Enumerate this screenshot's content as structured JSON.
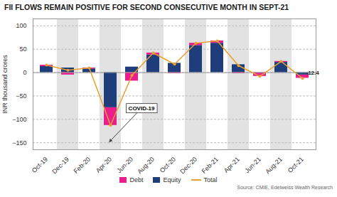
{
  "chart_data": {
    "type": "bar",
    "title": "FII FLOWS REMAIN POSITIVE FOR SECOND CONSECUTIVE MONTH IN SEPT-21",
    "ylabel": "INR thousand crores",
    "source": "Source: CMIE, Edelweiss Wealth Research",
    "categories": [
      "Oct-19",
      "Dec-19",
      "Feb-20",
      "Apr-20",
      "Jun-20",
      "Aug-20",
      "Oct-20",
      "Dec-20",
      "Feb-21",
      "Apr-21",
      "Jun-21",
      "Aug-21",
      "Oct-21"
    ],
    "series": [
      {
        "name": "Debt",
        "color": "#e91e8c",
        "values": [
          3,
          -5,
          2,
          -38,
          -18,
          4,
          -2,
          5,
          5,
          -2,
          -8,
          2,
          -7
        ]
      },
      {
        "name": "Equity",
        "color": "#1f3d7a",
        "values": [
          13,
          10,
          8,
          -75,
          12,
          38,
          20,
          58,
          63,
          17,
          0,
          22,
          -5
        ]
      },
      {
        "name": "Total",
        "type": "line",
        "color": "#e8a030",
        "marker": "circle",
        "values": [
          16,
          5,
          10,
          -113,
          -6,
          42,
          18,
          63,
          68,
          15,
          -8,
          24,
          -12.4
        ]
      }
    ],
    "stacked": true,
    "ylim": [
      -165,
      115
    ],
    "yticks": [
      -150,
      -100,
      -50,
      0,
      50,
      100
    ],
    "grid": true,
    "legend": "bottom",
    "annotations": [
      {
        "text": "COVID-19",
        "x": "Apr-20",
        "y": -150
      },
      {
        "text": "-12.4",
        "x": "Oct-21",
        "y": -12.4
      }
    ]
  }
}
